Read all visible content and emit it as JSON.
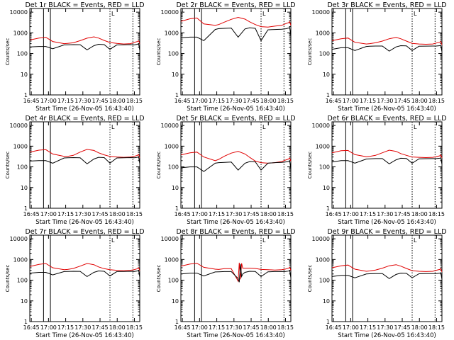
{
  "colors": {
    "events": "#000000",
    "lld": "#e00000",
    "background": "#ffffff"
  },
  "shared": {
    "ylabel": "Counts/sec",
    "xlabel": "Start Time (26-Nov-05 16:43:40)",
    "ytick_labels": [
      "1",
      "10",
      "100",
      "1000",
      "10000"
    ],
    "xtick_labels": [
      "16:45",
      "17:00",
      "17:15",
      "17:30",
      "17:45",
      "18:00",
      "18:15"
    ]
  },
  "chart_data": [
    {
      "type": "line",
      "title": "Det 1r BLACK = Events, RED = LLD",
      "detector": 1,
      "xlabel": "Start Time (26-Nov-05 16:43:40)",
      "ylabel": "Counts/sec",
      "x_range_min": [
        0,
        96
      ],
      "ylim": [
        1,
        15000
      ],
      "yscale": "log",
      "x_min": [
        0,
        8,
        14,
        20,
        30,
        33,
        38,
        44,
        50,
        56,
        60,
        65,
        70,
        76,
        82,
        88,
        91,
        94,
        95,
        96
      ],
      "events": [
        210,
        220,
        220,
        170,
        260,
        265,
        270,
        268,
        150,
        240,
        280,
        270,
        160,
        260,
        265,
        270,
        260,
        280,
        300,
        140
      ],
      "lld": [
        450,
        560,
        610,
        380,
        300,
        310,
        330,
        420,
        550,
        640,
        560,
        430,
        340,
        310,
        290,
        300,
        340,
        380,
        420,
        300
      ],
      "markers": [
        {
          "x": 12,
          "style": "solid"
        },
        {
          "x": 18,
          "style": "solid"
        },
        {
          "x": 70,
          "style": "dotted"
        },
        {
          "x": 90,
          "style": "dotted"
        }
      ],
      "flag": "L"
    },
    {
      "type": "line",
      "title": "Det 2r BLACK = Events, RED = LLD",
      "detector": 2,
      "xlabel": "Start Time (26-Nov-05 16:43:40)",
      "ylabel": "Counts/sec",
      "x_range_min": [
        0,
        96
      ],
      "ylim": [
        1,
        15000
      ],
      "yscale": "log",
      "x_min": [
        0,
        8,
        14,
        20,
        30,
        33,
        38,
        44,
        50,
        56,
        60,
        65,
        70,
        76,
        82,
        88,
        91,
        94,
        95,
        96
      ],
      "events": [
        580,
        620,
        620,
        420,
        1450,
        1600,
        1650,
        1700,
        620,
        1550,
        1750,
        1650,
        420,
        1400,
        1450,
        1500,
        1550,
        1700,
        1800,
        700
      ],
      "lld": [
        3600,
        4800,
        5200,
        2700,
        2300,
        2500,
        3300,
        4500,
        5600,
        4600,
        3400,
        2500,
        2000,
        1900,
        2100,
        2300,
        2700,
        3100,
        3500,
        2300
      ],
      "markers": [
        {
          "x": 12,
          "style": "solid"
        },
        {
          "x": 18,
          "style": "solid"
        },
        {
          "x": 70,
          "style": "dotted"
        },
        {
          "x": 90,
          "style": "dotted"
        }
      ],
      "flag": "L"
    },
    {
      "type": "line",
      "title": "Det 3r BLACK = Events, RED = LLD",
      "detector": 3,
      "xlabel": "Start Time (26-Nov-05 16:43:40)",
      "ylabel": "Counts/sec",
      "x_range_min": [
        0,
        96
      ],
      "ylim": [
        1,
        15000
      ],
      "yscale": "log",
      "x_min": [
        0,
        8,
        14,
        20,
        30,
        33,
        38,
        44,
        50,
        56,
        60,
        65,
        70,
        76,
        82,
        88,
        91,
        94,
        95,
        96
      ],
      "events": [
        160,
        190,
        190,
        140,
        220,
        225,
        230,
        230,
        130,
        210,
        240,
        235,
        140,
        225,
        228,
        230,
        230,
        240,
        250,
        120
      ],
      "lld": [
        420,
        520,
        560,
        350,
        290,
        300,
        330,
        400,
        520,
        600,
        520,
        400,
        310,
        290,
        280,
        290,
        320,
        350,
        380,
        260
      ],
      "markers": [
        {
          "x": 12,
          "style": "solid"
        },
        {
          "x": 18,
          "style": "solid"
        },
        {
          "x": 70,
          "style": "dotted"
        },
        {
          "x": 90,
          "style": "dotted"
        }
      ],
      "flag": "L"
    },
    {
      "type": "line",
      "title": "Det 4r BLACK = Events, RED = LLD",
      "detector": 4,
      "xlabel": "Start Time (26-Nov-05 16:43:40)",
      "ylabel": "Counts/sec",
      "x_range_min": [
        0,
        96
      ],
      "ylim": [
        1,
        15000
      ],
      "yscale": "log",
      "x_min": [
        0,
        8,
        14,
        20,
        30,
        33,
        38,
        44,
        50,
        56,
        60,
        65,
        70,
        76,
        82,
        88,
        91,
        94,
        95,
        96
      ],
      "events": [
        190,
        200,
        200,
        150,
        270,
        275,
        280,
        275,
        140,
        240,
        290,
        280,
        150,
        270,
        275,
        280,
        275,
        290,
        310,
        140
      ],
      "lld": [
        520,
        640,
        680,
        420,
        320,
        320,
        360,
        520,
        700,
        620,
        480,
        380,
        320,
        300,
        290,
        300,
        320,
        360,
        400,
        280
      ],
      "markers": [
        {
          "x": 12,
          "style": "solid"
        },
        {
          "x": 18,
          "style": "solid"
        },
        {
          "x": 70,
          "style": "dotted"
        },
        {
          "x": 90,
          "style": "dotted"
        }
      ],
      "flag": "L"
    },
    {
      "type": "line",
      "title": "Det 5r BLACK = Events, RED = LLD",
      "detector": 5,
      "xlabel": "Start Time (26-Nov-05 16:43:40)",
      "ylabel": "Counts/sec",
      "x_range_min": [
        0,
        96
      ],
      "ylim": [
        1,
        15000
      ],
      "yscale": "log",
      "x_min": [
        0,
        8,
        14,
        20,
        30,
        33,
        38,
        44,
        50,
        56,
        60,
        65,
        70,
        76,
        82,
        88,
        91,
        94,
        95,
        96
      ],
      "events": [
        90,
        100,
        100,
        60,
        150,
        160,
        165,
        170,
        70,
        150,
        180,
        175,
        70,
        150,
        160,
        165,
        170,
        180,
        190,
        80
      ],
      "lld": [
        380,
        480,
        520,
        300,
        200,
        230,
        330,
        460,
        560,
        420,
        290,
        190,
        160,
        150,
        160,
        180,
        210,
        240,
        270,
        190
      ],
      "markers": [
        {
          "x": 12,
          "style": "solid"
        },
        {
          "x": 18,
          "style": "solid"
        },
        {
          "x": 70,
          "style": "dotted"
        },
        {
          "x": 90,
          "style": "dotted"
        }
      ],
      "flag": "L"
    },
    {
      "type": "line",
      "title": "Det 6r BLACK = Events, RED = LLD",
      "detector": 6,
      "xlabel": "Start Time (26-Nov-05 16:43:40)",
      "ylabel": "Counts/sec",
      "x_range_min": [
        0,
        96
      ],
      "ylim": [
        1,
        15000
      ],
      "yscale": "log",
      "x_min": [
        0,
        8,
        14,
        20,
        30,
        33,
        38,
        44,
        50,
        56,
        60,
        65,
        70,
        76,
        82,
        88,
        91,
        94,
        95,
        96
      ],
      "events": [
        170,
        200,
        200,
        150,
        240,
        245,
        250,
        250,
        140,
        220,
        260,
        255,
        150,
        245,
        248,
        250,
        250,
        260,
        270,
        130
      ],
      "lld": [
        480,
        600,
        620,
        390,
        310,
        320,
        360,
        480,
        640,
        560,
        440,
        360,
        300,
        290,
        280,
        290,
        310,
        340,
        380,
        270
      ],
      "markers": [
        {
          "x": 12,
          "style": "solid"
        },
        {
          "x": 18,
          "style": "solid"
        },
        {
          "x": 70,
          "style": "dotted"
        },
        {
          "x": 90,
          "style": "dotted"
        }
      ],
      "flag": "L"
    },
    {
      "type": "line",
      "title": "Det 7r BLACK = Events, RED = LLD",
      "detector": 7,
      "xlabel": "Start Time (26-Nov-05 16:43:40)",
      "ylabel": "Counts/sec",
      "x_range_min": [
        0,
        96
      ],
      "ylim": [
        1,
        15000
      ],
      "yscale": "log",
      "x_min": [
        0,
        8,
        14,
        20,
        30,
        33,
        38,
        44,
        50,
        56,
        60,
        65,
        70,
        76,
        82,
        88,
        91,
        94,
        95,
        96
      ],
      "events": [
        220,
        240,
        240,
        180,
        260,
        265,
        270,
        268,
        150,
        240,
        280,
        270,
        160,
        260,
        265,
        270,
        260,
        280,
        300,
        140
      ],
      "lld": [
        460,
        580,
        640,
        400,
        320,
        330,
        370,
        480,
        640,
        560,
        440,
        360,
        320,
        300,
        290,
        300,
        320,
        360,
        400,
        290
      ],
      "markers": [
        {
          "x": 12,
          "style": "solid"
        },
        {
          "x": 18,
          "style": "solid"
        },
        {
          "x": 70,
          "style": "dotted"
        },
        {
          "x": 90,
          "style": "dotted"
        }
      ],
      "flag": "L"
    },
    {
      "type": "line",
      "title": "Det 8r BLACK = Events, RED = LLD",
      "detector": 8,
      "xlabel": "Start Time (26-Nov-05 16:43:40)",
      "ylabel": "Counts/sec",
      "x_range_min": [
        0,
        96
      ],
      "ylim": [
        1,
        15000
      ],
      "yscale": "log",
      "x_min": [
        0,
        8,
        14,
        20,
        30,
        33,
        38,
        44,
        50,
        51,
        52,
        53,
        54,
        56,
        60,
        65,
        70,
        76,
        82,
        88,
        91,
        94,
        95,
        96
      ],
      "events": [
        200,
        220,
        220,
        160,
        250,
        255,
        260,
        260,
        120,
        80,
        600,
        150,
        200,
        240,
        270,
        265,
        150,
        255,
        260,
        265,
        260,
        275,
        290,
        130
      ],
      "lld": [
        480,
        600,
        660,
        420,
        340,
        330,
        360,
        360,
        90,
        700,
        110,
        650,
        380,
        380,
        380,
        370,
        330,
        320,
        310,
        320,
        340,
        380,
        420,
        300
      ],
      "markers": [
        {
          "x": 12,
          "style": "solid"
        },
        {
          "x": 18,
          "style": "solid"
        },
        {
          "x": 70,
          "style": "dotted"
        },
        {
          "x": 90,
          "style": "dotted"
        }
      ],
      "flag": "L"
    },
    {
      "type": "line",
      "title": "Det 9r BLACK = Events, RED = LLD",
      "detector": 9,
      "xlabel": "Start Time (26-Nov-05 16:43:40)",
      "ylabel": "Counts/sec",
      "x_range_min": [
        0,
        96
      ],
      "ylim": [
        1,
        15000
      ],
      "yscale": "log",
      "x_min": [
        0,
        8,
        14,
        20,
        30,
        33,
        38,
        44,
        50,
        56,
        60,
        65,
        70,
        76,
        82,
        88,
        91,
        94,
        95,
        96
      ],
      "events": [
        150,
        170,
        170,
        130,
        200,
        205,
        210,
        210,
        120,
        190,
        220,
        215,
        130,
        205,
        208,
        210,
        210,
        220,
        230,
        110
      ],
      "lld": [
        400,
        500,
        540,
        340,
        270,
        280,
        310,
        380,
        500,
        560,
        480,
        370,
        290,
        270,
        260,
        270,
        300,
        330,
        360,
        250
      ],
      "markers": [
        {
          "x": 12,
          "style": "solid"
        },
        {
          "x": 18,
          "style": "solid"
        },
        {
          "x": 70,
          "style": "dotted"
        },
        {
          "x": 90,
          "style": "dotted"
        }
      ],
      "flag": "L"
    }
  ]
}
